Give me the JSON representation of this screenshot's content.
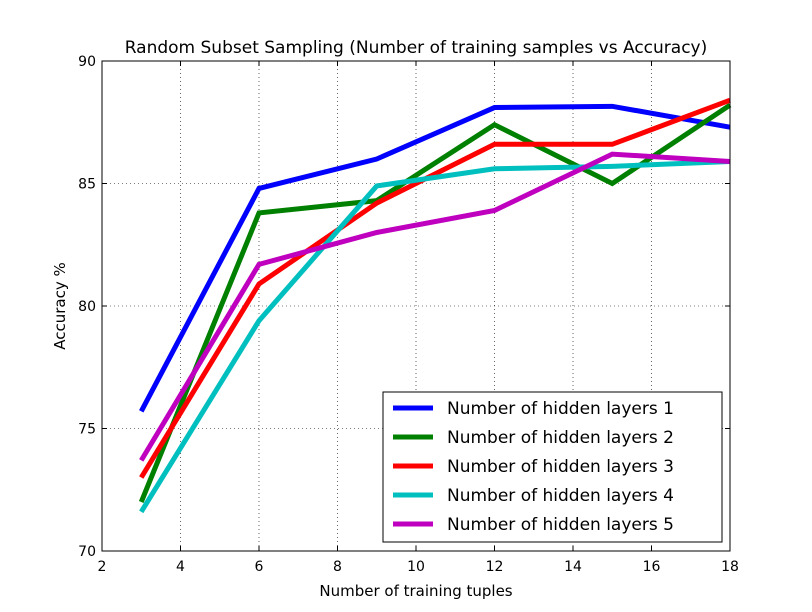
{
  "chart_data": {
    "type": "line",
    "title": "Random Subset Sampling (Number of training samples vs Accuracy)",
    "xlabel": "Number of training tuples",
    "ylabel": "Accuracy %",
    "xlim": [
      2,
      18
    ],
    "ylim": [
      70,
      90
    ],
    "xticks": [
      2,
      4,
      6,
      8,
      10,
      12,
      14,
      16,
      18
    ],
    "yticks": [
      70,
      75,
      80,
      85,
      90
    ],
    "grid": true,
    "legend_position": "lower-right",
    "x": [
      3,
      6,
      9,
      12,
      15,
      18
    ],
    "series": [
      {
        "name": "Number of hidden layers 1",
        "color": "#0000ff",
        "values": [
          75.7,
          84.8,
          86.0,
          88.1,
          88.15,
          87.3
        ]
      },
      {
        "name": "Number of hidden layers 2",
        "color": "#008000",
        "values": [
          72.0,
          83.8,
          84.3,
          87.4,
          85.0,
          88.2
        ]
      },
      {
        "name": "Number of hidden layers 3",
        "color": "#ff0000",
        "values": [
          73.0,
          80.9,
          84.2,
          86.6,
          86.6,
          88.4
        ]
      },
      {
        "name": "Number of hidden layers 4",
        "color": "#00bfbf",
        "values": [
          71.6,
          79.4,
          84.9,
          85.6,
          85.7,
          85.9
        ]
      },
      {
        "name": "Number of hidden layers 5",
        "color": "#bf00bf",
        "values": [
          73.7,
          81.7,
          83.0,
          83.9,
          86.2,
          85.9
        ]
      }
    ]
  }
}
